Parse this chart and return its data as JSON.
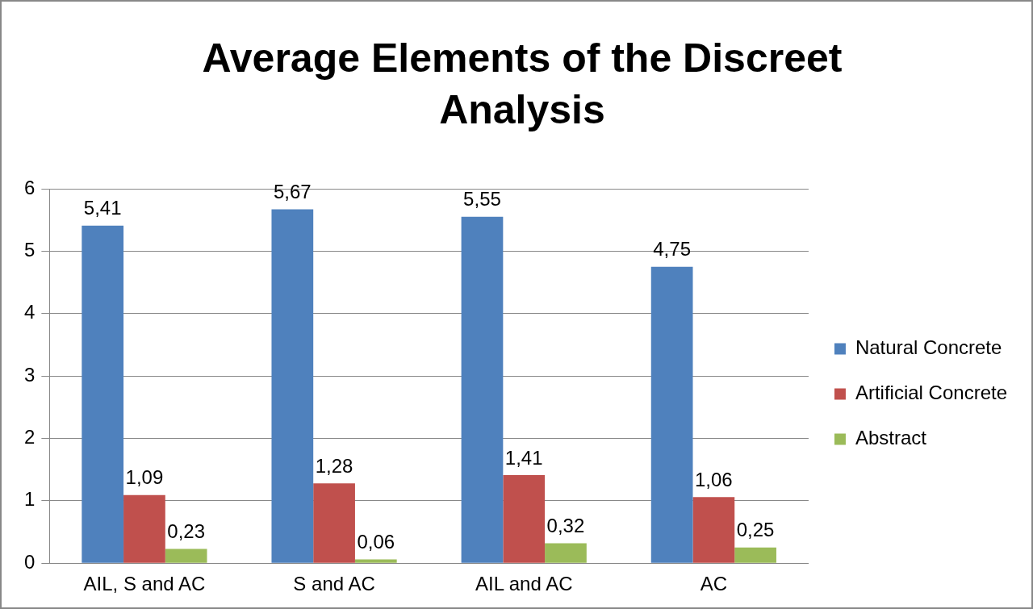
{
  "chart_data": {
    "type": "bar",
    "title": "Average Elements of the Discreet Analysis",
    "categories": [
      "AIL, S and AC",
      "S and AC",
      "AIL and AC",
      "AC"
    ],
    "series": [
      {
        "name": "Natural Concrete",
        "color": "#4f81bd",
        "values": [
          5.41,
          5.67,
          5.55,
          4.75
        ],
        "value_labels": [
          "5,41",
          "5,67",
          "5,55",
          "4,75"
        ]
      },
      {
        "name": "Artificial Concrete",
        "color": "#c0504d",
        "values": [
          1.09,
          1.28,
          1.41,
          1.06
        ],
        "value_labels": [
          "1,09",
          "1,28",
          "1,41",
          "1,06"
        ]
      },
      {
        "name": "Abstract",
        "color": "#9bbb59",
        "values": [
          0.23,
          0.06,
          0.32,
          0.25
        ],
        "value_labels": [
          "0,23",
          "0,06",
          "0,32",
          "0,25"
        ]
      }
    ],
    "ylim": [
      0,
      6
    ],
    "yticks": [
      0,
      1,
      2,
      3,
      4,
      5,
      6
    ],
    "grid": "y",
    "legend": "right"
  }
}
